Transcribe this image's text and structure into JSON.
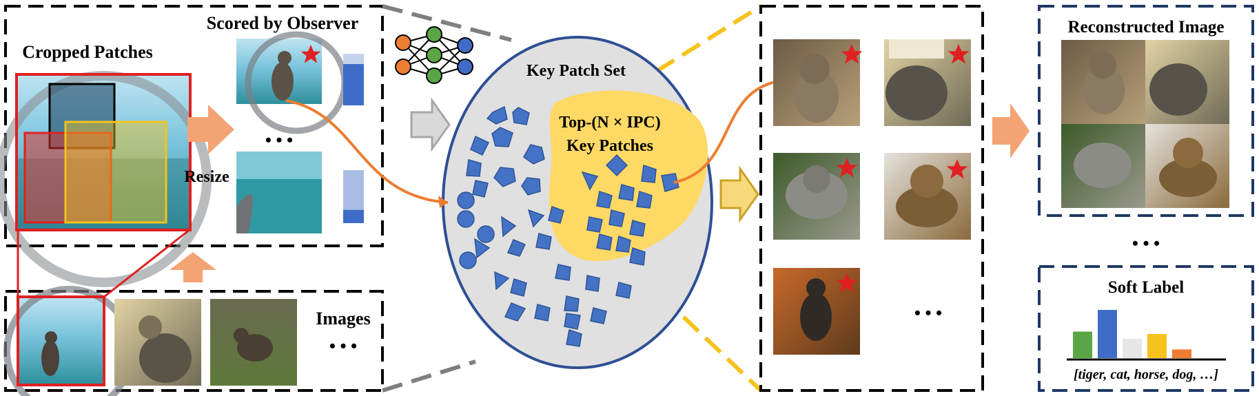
{
  "labels": {
    "cropped_patches": "Cropped Patches",
    "scored_by_observer": "Scored by Observer",
    "resize": "Resize",
    "images": "Images",
    "key_patch_set": "Key Patch Set",
    "top_line1": "Top-(N × IPC)",
    "top_line2": "Key Patches",
    "reconstructed_image": "Reconstructed Image",
    "soft_label": "Soft Label",
    "soft_label_classes": "[tiger, cat, horse, dog, …]",
    "ellipsis": "• • •"
  },
  "observer_scores": [
    0.8,
    0.25
  ],
  "soft_label_values": [
    0.55,
    1.0,
    0.4,
    0.5,
    0.18
  ],
  "colors": {
    "green": "#5aa646",
    "blue": "#3f6cc7",
    "grey": "#e6e6e6",
    "yellow": "#f6c21c",
    "orange": "#ed7d31",
    "arrow_orange": "#f4a474",
    "arrow_grey": "#a6a6a6",
    "arrow_gold": "#e4bf3a",
    "ellipse_fill": "#e0e0e0",
    "ellipse_stroke": "#2e4f95",
    "key_region": "#ffd966",
    "dash_navy": "#1f3864",
    "dash_yellow": "#f6c21c",
    "dash_grey": "#7f7f7f",
    "star": "#e02020"
  },
  "icons": [
    "star-icon",
    "neural-network-icon",
    "cat-photo-thumbnail"
  ]
}
